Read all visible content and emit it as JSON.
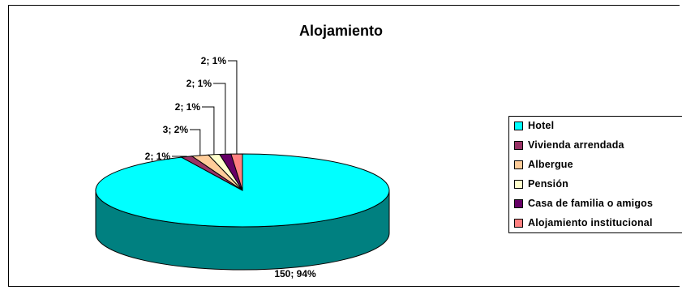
{
  "chart_data": {
    "type": "pie",
    "title": "Alojamiento",
    "categories": [
      "Hotel",
      "Vivienda arrendada",
      "Albergue",
      "Pensión",
      "Casa de familia o amigos",
      "Alojamiento institucional"
    ],
    "values": [
      150,
      2,
      3,
      2,
      2,
      2
    ],
    "percent_labels": [
      "94%",
      "1%",
      "2%",
      "1%",
      "1%",
      "1%"
    ],
    "data_labels": [
      "150; 94%",
      "2; 1%",
      "3; 2%",
      "2; 1%",
      "2; 1%",
      "2; 1%"
    ],
    "colors": [
      "#00FFFF",
      "#993366",
      "#FFCC99",
      "#FFFFCC",
      "#660066",
      "#FF8080"
    ],
    "side_color": "#008080",
    "legend_position": "right",
    "style": "3d-pie"
  }
}
